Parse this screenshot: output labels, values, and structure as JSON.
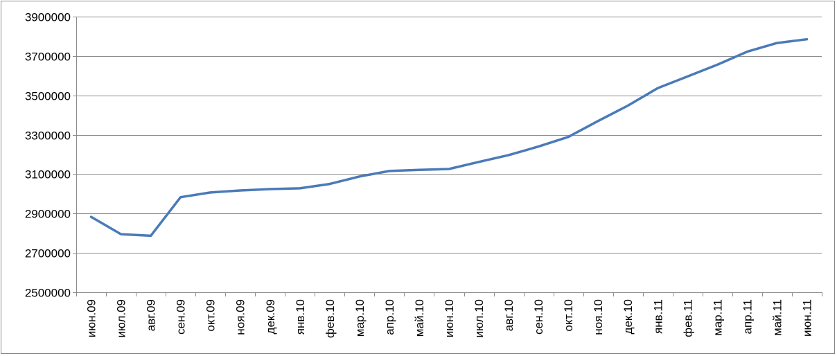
{
  "chart_data": {
    "type": "line",
    "title": "",
    "xlabel": "",
    "ylabel": "",
    "ylim": [
      2500000,
      3900000
    ],
    "yticks": [
      2500000,
      2700000,
      2900000,
      3100000,
      3300000,
      3500000,
      3700000,
      3900000
    ],
    "grid": true,
    "legend": "none",
    "categories": [
      "июн.09",
      "июл.09",
      "авг.09",
      "сен.09",
      "окт.09",
      "ноя.09",
      "дек.09",
      "янв.10",
      "фев.10",
      "мар.10",
      "апр.10",
      "май.10",
      "июн.10",
      "июл.10",
      "авг.10",
      "сен.10",
      "окт.10",
      "ноя.10",
      "дек.10",
      "янв.11",
      "фев.11",
      "мар.11",
      "апр.11",
      "май.11",
      "июн.11"
    ],
    "series": [
      {
        "color": "#4a7ab8",
        "values": [
          2883000,
          2795000,
          2787000,
          2983000,
          3007000,
          3017000,
          3024000,
          3028000,
          3050000,
          3088000,
          3116000,
          3122000,
          3126000,
          3162000,
          3197000,
          3240000,
          3289000,
          3370000,
          3448000,
          3537000,
          3596000,
          3656000,
          3722000,
          3766000,
          3785000
        ]
      }
    ]
  }
}
